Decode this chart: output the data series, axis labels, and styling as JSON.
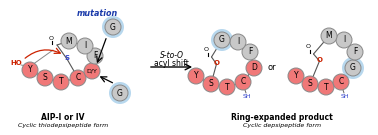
{
  "bg_color": "#ffffff",
  "pink_color": "#f07878",
  "gray_color": "#c8c8c8",
  "blue_ring_color": "#b8d8ee",
  "red_color": "#cc2200",
  "blue_color": "#1a3aaa",
  "dark_blue": "#3344cc",
  "title1": "AIP-I or IV",
  "subtitle1": "Cyclic thiodepsipeptide form",
  "title2": "Ring-expanded product",
  "subtitle2": "Cyclic depsipeptide form",
  "mutation_label": "mutation",
  "shift_label1": "S-to-O",
  "shift_label2": "acyl shift",
  "or_label": "or"
}
